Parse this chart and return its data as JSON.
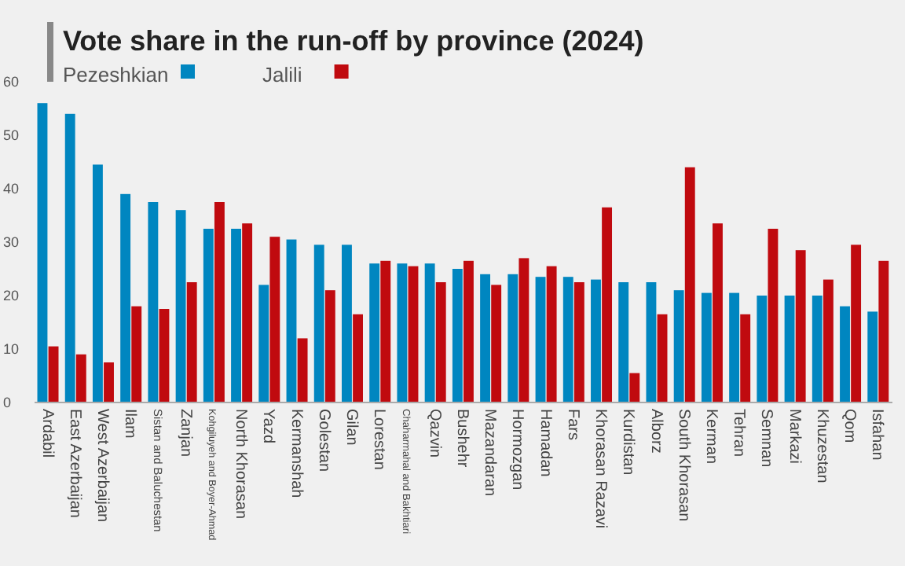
{
  "chart_data": {
    "type": "bar",
    "title": "Vote share in the run-off by province (2024)",
    "categories": [
      "Ardabil",
      "East Azerbaijan",
      "West Azerbaijan",
      "Ilam",
      "Sistan and Baluchestan",
      "Zanjan",
      "Kohgiluyeh and Boyer-Ahmad",
      "North Khorasan",
      "Yazd",
      "Kermanshah",
      "Golestan",
      "Gilan",
      "Lorestan",
      "Chaharmahal and Bakhtiari",
      "Qazvin",
      "Bushehr",
      "Mazandaran",
      "Hormozgan",
      "Hamadan",
      "Fars",
      "Khorasan Razavi",
      "Kurdistan",
      "Alborz",
      "South Khorasan",
      "Kerman",
      "Tehran",
      "Semnan",
      "Markazi",
      "Khuzestan",
      "Qom",
      "Isfahan"
    ],
    "series": [
      {
        "name": "Pezeshkian",
        "color": "#0086c0",
        "values": [
          56,
          54,
          44.5,
          39,
          37.5,
          36,
          32.5,
          32.5,
          22,
          30.5,
          29.5,
          29.5,
          26,
          26,
          26,
          25,
          24,
          24,
          23.5,
          23.5,
          23,
          22.5,
          22.5,
          21,
          20.5,
          20.5,
          20,
          20,
          20,
          18,
          17
        ]
      },
      {
        "name": "Jalili",
        "color": "#c00a0f",
        "values": [
          10.5,
          9,
          7.5,
          18,
          17.5,
          22.5,
          37.5,
          33.5,
          31,
          12,
          21,
          16.5,
          26.5,
          25.5,
          22.5,
          26.5,
          22,
          27,
          25.5,
          22.5,
          36.5,
          5.5,
          16.5,
          44,
          33.5,
          16.5,
          32.5,
          28.5,
          23,
          29.5,
          26.5
        ]
      }
    ],
    "ylim": [
      0,
      60
    ],
    "yticks": [
      0,
      10,
      20,
      30,
      40,
      50,
      60
    ],
    "legend": "top left",
    "grid": false
  }
}
